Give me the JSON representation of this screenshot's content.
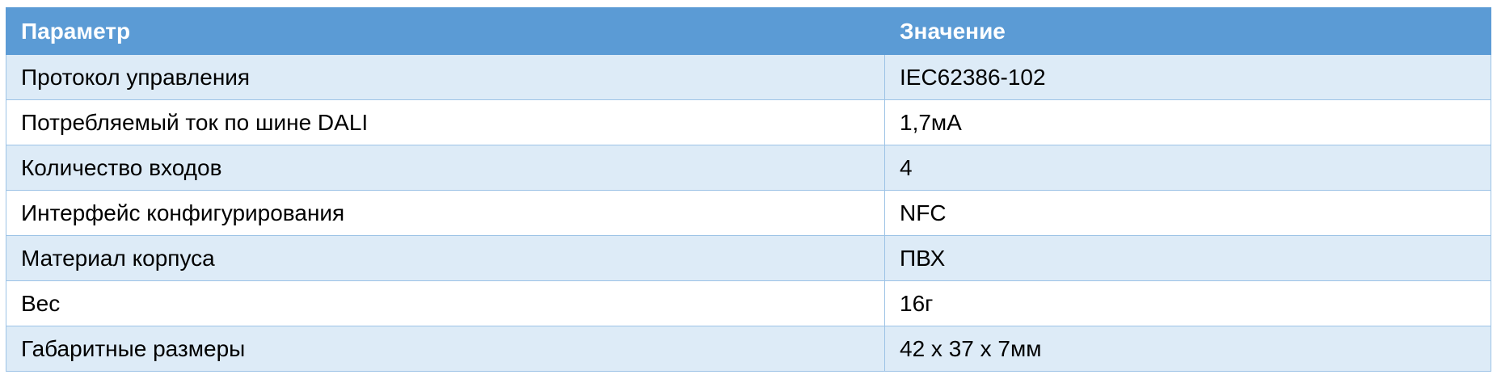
{
  "table": {
    "header": [
      "Параметр",
      "Значение"
    ],
    "rows": [
      [
        "Протокол управления",
        "IEC62386-102"
      ],
      [
        "Потребляемый ток по шине DALI",
        "1,7мА"
      ],
      [
        "Количество входов",
        "4"
      ],
      [
        "Интерфейс конфигурирования",
        "NFC"
      ],
      [
        "Материал корпуса",
        "ПВХ"
      ],
      [
        "Вес",
        "16г"
      ],
      [
        "Габаритные размеры",
        "42 x 37 x 7мм"
      ]
    ]
  }
}
